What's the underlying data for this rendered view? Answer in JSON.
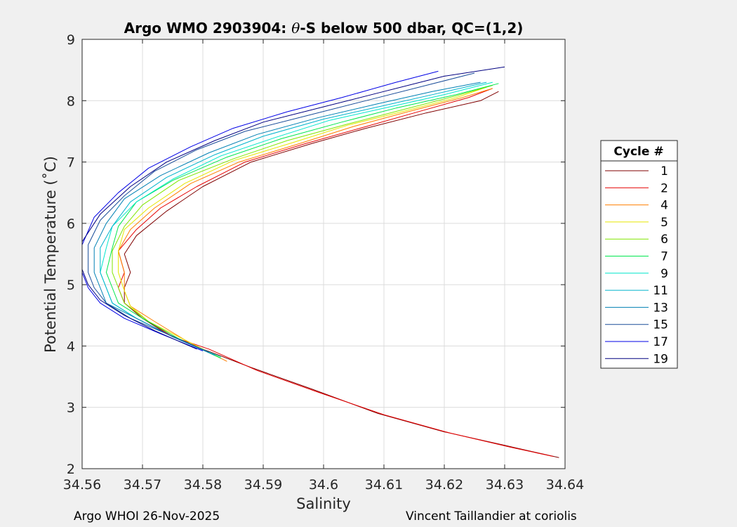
{
  "chart_data": {
    "type": "line",
    "title_main": "Argo WMO 2903904: ",
    "title_theta": "θ",
    "title_rest": "-S below 500 dbar,  QC=(1,2)",
    "xlabel": "Salinity",
    "ylabel": "Potential Temperature (˚C)",
    "xlim": [
      34.56,
      34.64
    ],
    "ylim": [
      2,
      9
    ],
    "xticks": [
      "34.56",
      "34.57",
      "34.58",
      "34.59",
      "34.6",
      "34.61",
      "34.62",
      "34.63",
      "34.64"
    ],
    "yticks": [
      "2",
      "3",
      "4",
      "5",
      "6",
      "7",
      "8",
      "9"
    ],
    "grid": true,
    "legend_title": "Cycle #",
    "legend_position": "outside-right",
    "series": [
      {
        "name": "1",
        "color": "#800000",
        "points": [
          [
            34.629,
            8.15
          ],
          [
            34.626,
            8.0
          ],
          [
            34.617,
            7.8
          ],
          [
            34.607,
            7.55
          ],
          [
            34.598,
            7.3
          ],
          [
            34.588,
            7.0
          ],
          [
            34.58,
            6.6
          ],
          [
            34.574,
            6.2
          ],
          [
            34.569,
            5.8
          ],
          [
            34.567,
            5.5
          ],
          [
            34.568,
            5.2
          ],
          [
            34.567,
            4.95
          ],
          [
            34.567,
            4.7
          ],
          [
            34.57,
            4.45
          ],
          [
            34.574,
            4.2
          ],
          [
            34.58,
            3.95
          ],
          [
            34.588,
            3.65
          ],
          [
            34.598,
            3.3
          ],
          [
            34.609,
            2.9
          ],
          [
            34.62,
            2.6
          ],
          [
            34.63,
            2.38
          ],
          [
            34.639,
            2.18
          ]
        ]
      },
      {
        "name": "2",
        "color": "#e60000",
        "points": [
          [
            34.628,
            8.2
          ],
          [
            34.624,
            8.05
          ],
          [
            34.615,
            7.8
          ],
          [
            34.606,
            7.55
          ],
          [
            34.597,
            7.3
          ],
          [
            34.587,
            7.0
          ],
          [
            34.579,
            6.6
          ],
          [
            34.573,
            6.25
          ],
          [
            34.569,
            5.9
          ],
          [
            34.566,
            5.55
          ],
          [
            34.567,
            5.2
          ],
          [
            34.566,
            4.95
          ],
          [
            34.567,
            4.7
          ],
          [
            34.571,
            4.4
          ],
          [
            34.575,
            4.15
          ],
          [
            34.581,
            3.95
          ],
          [
            34.589,
            3.6
          ],
          [
            34.599,
            3.25
          ],
          [
            34.61,
            2.88
          ],
          [
            34.621,
            2.58
          ],
          [
            34.631,
            2.35
          ],
          [
            34.638,
            2.2
          ]
        ]
      },
      {
        "name": "4",
        "color": "#ff7f00",
        "points": [
          [
            34.628,
            8.2
          ],
          [
            34.623,
            8.05
          ],
          [
            34.614,
            7.82
          ],
          [
            34.605,
            7.58
          ],
          [
            34.596,
            7.3
          ],
          [
            34.586,
            7.0
          ],
          [
            34.578,
            6.65
          ],
          [
            34.572,
            6.25
          ],
          [
            34.568,
            5.9
          ],
          [
            34.566,
            5.55
          ],
          [
            34.567,
            5.2
          ],
          [
            34.567,
            4.9
          ],
          [
            34.568,
            4.65
          ],
          [
            34.572,
            4.4
          ],
          [
            34.577,
            4.1
          ],
          [
            34.584,
            3.75
          ]
        ]
      },
      {
        "name": "5",
        "color": "#e6e600",
        "points": [
          [
            34.627,
            8.22
          ],
          [
            34.622,
            8.05
          ],
          [
            34.613,
            7.82
          ],
          [
            34.604,
            7.6
          ],
          [
            34.595,
            7.32
          ],
          [
            34.585,
            7.02
          ],
          [
            34.577,
            6.65
          ],
          [
            34.571,
            6.25
          ],
          [
            34.567,
            5.9
          ],
          [
            34.566,
            5.55
          ],
          [
            34.566,
            5.2
          ],
          [
            34.567,
            4.9
          ],
          [
            34.568,
            4.65
          ],
          [
            34.571,
            4.4
          ],
          [
            34.576,
            4.15
          ],
          [
            34.583,
            3.8
          ]
        ]
      },
      {
        "name": "6",
        "color": "#80e600",
        "points": [
          [
            34.628,
            8.25
          ],
          [
            34.622,
            8.08
          ],
          [
            34.613,
            7.85
          ],
          [
            34.604,
            7.62
          ],
          [
            34.594,
            7.35
          ],
          [
            34.585,
            7.05
          ],
          [
            34.576,
            6.7
          ],
          [
            34.57,
            6.3
          ],
          [
            34.567,
            5.95
          ],
          [
            34.565,
            5.55
          ],
          [
            34.565,
            5.2
          ],
          [
            34.566,
            4.95
          ],
          [
            34.567,
            4.7
          ],
          [
            34.571,
            4.4
          ],
          [
            34.576,
            4.12
          ],
          [
            34.583,
            3.8
          ]
        ]
      },
      {
        "name": "7",
        "color": "#00e64d",
        "points": [
          [
            34.629,
            8.28
          ],
          [
            34.622,
            8.1
          ],
          [
            34.612,
            7.88
          ],
          [
            34.603,
            7.65
          ],
          [
            34.593,
            7.38
          ],
          [
            34.584,
            7.08
          ],
          [
            34.575,
            6.7
          ],
          [
            34.569,
            6.35
          ],
          [
            34.566,
            5.95
          ],
          [
            34.565,
            5.6
          ],
          [
            34.564,
            5.2
          ],
          [
            34.565,
            4.95
          ],
          [
            34.566,
            4.7
          ],
          [
            34.57,
            4.45
          ],
          [
            34.576,
            4.12
          ],
          [
            34.583,
            3.8
          ]
        ]
      },
      {
        "name": "9",
        "color": "#00e6cc",
        "points": [
          [
            34.628,
            8.3
          ],
          [
            34.62,
            8.1
          ],
          [
            34.611,
            7.9
          ],
          [
            34.601,
            7.68
          ],
          [
            34.592,
            7.4
          ],
          [
            34.583,
            7.1
          ],
          [
            34.575,
            6.72
          ],
          [
            34.569,
            6.35
          ],
          [
            34.565,
            5.95
          ],
          [
            34.564,
            5.6
          ],
          [
            34.563,
            5.2
          ],
          [
            34.564,
            4.95
          ],
          [
            34.565,
            4.7
          ],
          [
            34.569,
            4.45
          ],
          [
            34.575,
            4.15
          ],
          [
            34.583,
            3.82
          ]
        ]
      },
      {
        "name": "11",
        "color": "#00b3cc",
        "points": [
          [
            34.627,
            8.3
          ],
          [
            34.619,
            8.12
          ],
          [
            34.61,
            7.92
          ],
          [
            34.6,
            7.7
          ],
          [
            34.59,
            7.42
          ],
          [
            34.582,
            7.12
          ],
          [
            34.574,
            6.75
          ],
          [
            34.568,
            6.35
          ],
          [
            34.565,
            5.95
          ],
          [
            34.563,
            5.6
          ],
          [
            34.563,
            5.2
          ],
          [
            34.564,
            4.95
          ],
          [
            34.565,
            4.7
          ],
          [
            34.569,
            4.45
          ],
          [
            34.575,
            4.15
          ],
          [
            34.582,
            3.85
          ]
        ]
      },
      {
        "name": "13",
        "color": "#0080b3",
        "points": [
          [
            34.626,
            8.3
          ],
          [
            34.618,
            8.15
          ],
          [
            34.609,
            7.95
          ],
          [
            34.599,
            7.72
          ],
          [
            34.589,
            7.45
          ],
          [
            34.581,
            7.15
          ],
          [
            34.573,
            6.78
          ],
          [
            34.567,
            6.4
          ],
          [
            34.564,
            6.0
          ],
          [
            34.562,
            5.6
          ],
          [
            34.562,
            5.2
          ],
          [
            34.563,
            4.95
          ],
          [
            34.564,
            4.7
          ],
          [
            34.569,
            4.45
          ],
          [
            34.575,
            4.15
          ],
          [
            34.582,
            3.85
          ]
        ]
      },
      {
        "name": "15",
        "color": "#1a4d99",
        "points": [
          [
            34.625,
            8.45
          ],
          [
            34.617,
            8.25
          ],
          [
            34.607,
            8.0
          ],
          [
            34.597,
            7.75
          ],
          [
            34.587,
            7.5
          ],
          [
            34.579,
            7.2
          ],
          [
            34.572,
            6.85
          ],
          [
            34.567,
            6.45
          ],
          [
            34.563,
            6.05
          ],
          [
            34.561,
            5.65
          ],
          [
            34.561,
            5.2
          ],
          [
            34.562,
            4.95
          ],
          [
            34.564,
            4.7
          ],
          [
            34.568,
            4.45
          ],
          [
            34.574,
            4.2
          ],
          [
            34.581,
            3.9
          ]
        ]
      },
      {
        "name": "17",
        "color": "#0000e6",
        "points": [
          [
            34.619,
            8.48
          ],
          [
            34.612,
            8.3
          ],
          [
            34.603,
            8.05
          ],
          [
            34.594,
            7.82
          ],
          [
            34.585,
            7.55
          ],
          [
            34.578,
            7.25
          ],
          [
            34.571,
            6.9
          ],
          [
            34.566,
            6.5
          ],
          [
            34.562,
            6.1
          ],
          [
            34.56,
            5.65
          ],
          [
            34.56,
            5.2
          ],
          [
            34.561,
            4.95
          ],
          [
            34.563,
            4.7
          ],
          [
            34.567,
            4.45
          ],
          [
            34.573,
            4.2
          ],
          [
            34.58,
            3.92
          ]
        ]
      },
      {
        "name": "19",
        "color": "#000080",
        "points": [
          [
            34.63,
            8.55
          ],
          [
            34.62,
            8.4
          ],
          [
            34.61,
            8.15
          ],
          [
            34.6,
            7.9
          ],
          [
            34.59,
            7.65
          ],
          [
            34.582,
            7.35
          ],
          [
            34.574,
            7.0
          ],
          [
            34.568,
            6.6
          ],
          [
            34.563,
            6.15
          ],
          [
            34.56,
            5.7
          ],
          [
            34.56,
            5.25
          ],
          [
            34.561,
            5.0
          ],
          [
            34.563,
            4.75
          ],
          [
            34.567,
            4.5
          ],
          [
            34.572,
            4.25
          ],
          [
            34.579,
            3.95
          ]
        ]
      }
    ]
  },
  "footer": {
    "left": "Argo WHOI 26-Nov-2025",
    "right": "Vincent Taillandier at coriolis"
  }
}
